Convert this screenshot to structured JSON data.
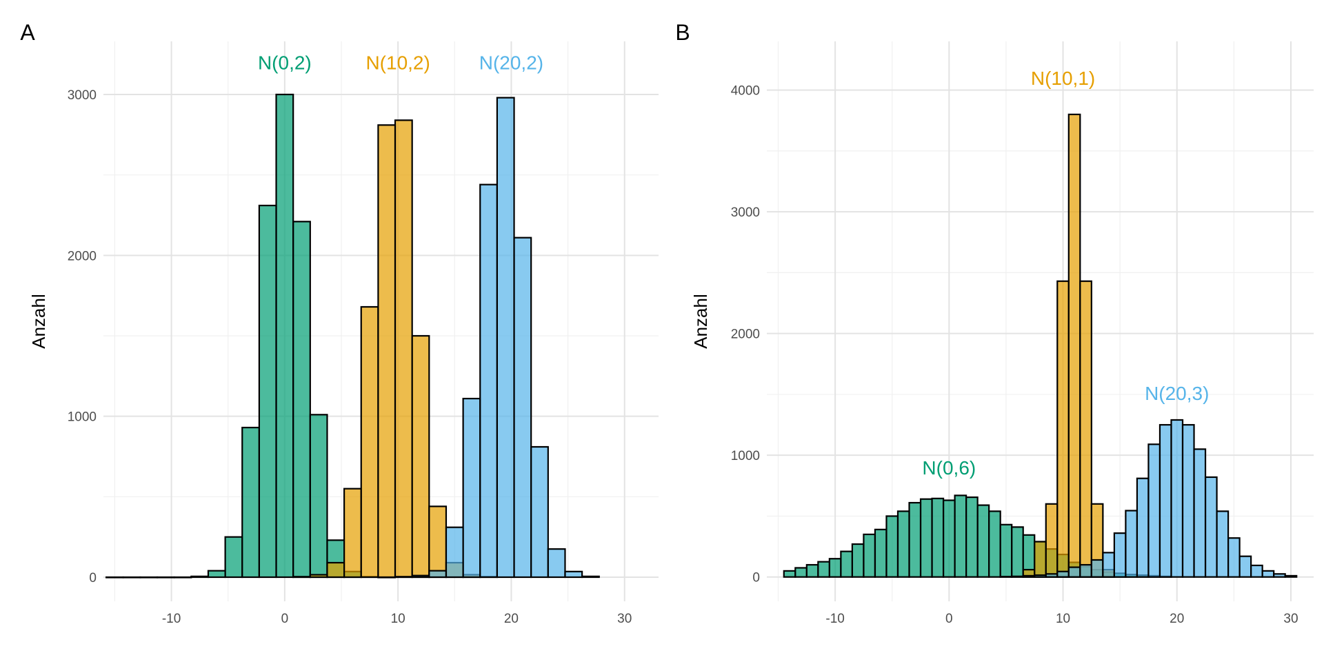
{
  "colors": {
    "green": "#009e73",
    "orange": "#e69f00",
    "blue": "#56b4e9"
  },
  "chart_data": [
    {
      "panel": "A",
      "type": "bar",
      "ylabel": "Anzahl",
      "xlim": [
        -16,
        33
      ],
      "ylim": [
        -150,
        3330
      ],
      "xticks": [
        -10,
        0,
        10,
        20,
        30
      ],
      "yticks": [
        0,
        1000,
        2000,
        3000
      ],
      "grid": true,
      "series": [
        {
          "name": "N(0,2)",
          "color": "green",
          "bin_width": 1.5,
          "label_at": [
            0,
            3200
          ],
          "bins": [
            [
              -15,
              0
            ],
            [
              -13.5,
              0
            ],
            [
              -12,
              0
            ],
            [
              -10.5,
              0
            ],
            [
              -9,
              0
            ],
            [
              -7.5,
              5
            ],
            [
              -6,
              40
            ],
            [
              -4.5,
              250
            ],
            [
              -3,
              930
            ],
            [
              -1.5,
              2310
            ],
            [
              0,
              3000
            ],
            [
              1.5,
              2210
            ],
            [
              3,
              1010
            ],
            [
              4.5,
              230
            ],
            [
              6,
              35
            ],
            [
              7.5,
              3
            ],
            [
              9,
              0
            ]
          ]
        },
        {
          "name": "N(10,2)",
          "color": "orange",
          "bin_width": 1.5,
          "label_at": [
            10,
            3200
          ],
          "bins": [
            [
              1.5,
              3
            ],
            [
              3,
              15
            ],
            [
              4.5,
              90
            ],
            [
              6,
              550
            ],
            [
              7.5,
              1680
            ],
            [
              9,
              2810
            ],
            [
              10.5,
              2840
            ],
            [
              12,
              1500
            ],
            [
              13.5,
              440
            ],
            [
              15,
              90
            ],
            [
              16.5,
              15
            ],
            [
              18,
              3
            ]
          ]
        },
        {
          "name": "N(20,2)",
          "color": "blue",
          "bin_width": 1.5,
          "label_at": [
            20,
            3200
          ],
          "bins": [
            [
              10.5,
              3
            ],
            [
              12,
              10
            ],
            [
              13.5,
              40
            ],
            [
              15,
              310
            ],
            [
              16.5,
              1110
            ],
            [
              18,
              2440
            ],
            [
              19.5,
              2980
            ],
            [
              21,
              2110
            ],
            [
              22.5,
              810
            ],
            [
              24,
              175
            ],
            [
              25.5,
              35
            ],
            [
              27,
              5
            ]
          ]
        }
      ]
    },
    {
      "panel": "B",
      "type": "bar",
      "ylabel": "Anzahl",
      "xlim": [
        -16,
        32
      ],
      "ylim": [
        -200,
        4400
      ],
      "xticks": [
        -10,
        0,
        10,
        20,
        30
      ],
      "yticks": [
        0,
        1000,
        2000,
        3000,
        4000
      ],
      "grid": true,
      "series": [
        {
          "name": "N(0,6)",
          "color": "green",
          "bin_width": 1,
          "label_at": [
            0,
            900
          ],
          "bins": [
            [
              -14,
              50
            ],
            [
              -13,
              75
            ],
            [
              -12,
              100
            ],
            [
              -11,
              125
            ],
            [
              -10,
              150
            ],
            [
              -9,
              210
            ],
            [
              -8,
              270
            ],
            [
              -7,
              350
            ],
            [
              -6,
              390
            ],
            [
              -5,
              500
            ],
            [
              -4,
              540
            ],
            [
              -3,
              610
            ],
            [
              -2,
              640
            ],
            [
              -1,
              645
            ],
            [
              0,
              630
            ],
            [
              1,
              670
            ],
            [
              2,
              655
            ],
            [
              3,
              590
            ],
            [
              4,
              540
            ],
            [
              5,
              430
            ],
            [
              6,
              410
            ],
            [
              7,
              345
            ],
            [
              8,
              290
            ],
            [
              9,
              230
            ],
            [
              10,
              185
            ],
            [
              11,
              120
            ],
            [
              12,
              85
            ],
            [
              13,
              60
            ],
            [
              14,
              40
            ],
            [
              15,
              30
            ],
            [
              16,
              20
            ],
            [
              17,
              15
            ],
            [
              18,
              10
            ],
            [
              19,
              5
            ]
          ]
        },
        {
          "name": "N(10,1)",
          "color": "orange",
          "bin_width": 1,
          "label_at": [
            10,
            4100
          ],
          "bins": [
            [
              7,
              60
            ],
            [
              8,
              290
            ],
            [
              9,
              600
            ],
            [
              10,
              2430
            ],
            [
              11,
              3800
            ],
            [
              12,
              2430
            ],
            [
              13,
              600
            ],
            [
              14,
              60
            ]
          ]
        },
        {
          "name": "N(20,3)",
          "color": "blue",
          "bin_width": 1,
          "label_at": [
            20,
            1510
          ],
          "bins": [
            [
              5,
              3
            ],
            [
              6,
              5
            ],
            [
              7,
              10
            ],
            [
              8,
              15
            ],
            [
              9,
              25
            ],
            [
              10,
              45
            ],
            [
              11,
              80
            ],
            [
              12,
              100
            ],
            [
              13,
              140
            ],
            [
              14,
              200
            ],
            [
              15,
              360
            ],
            [
              16,
              545
            ],
            [
              17,
              810
            ],
            [
              18,
              1090
            ],
            [
              19,
              1250
            ],
            [
              20,
              1290
            ],
            [
              21,
              1250
            ],
            [
              22,
              1050
            ],
            [
              23,
              820
            ],
            [
              24,
              540
            ],
            [
              25,
              320
            ],
            [
              26,
              170
            ],
            [
              27,
              95
            ],
            [
              28,
              50
            ],
            [
              29,
              25
            ],
            [
              30,
              10
            ]
          ]
        }
      ]
    }
  ]
}
